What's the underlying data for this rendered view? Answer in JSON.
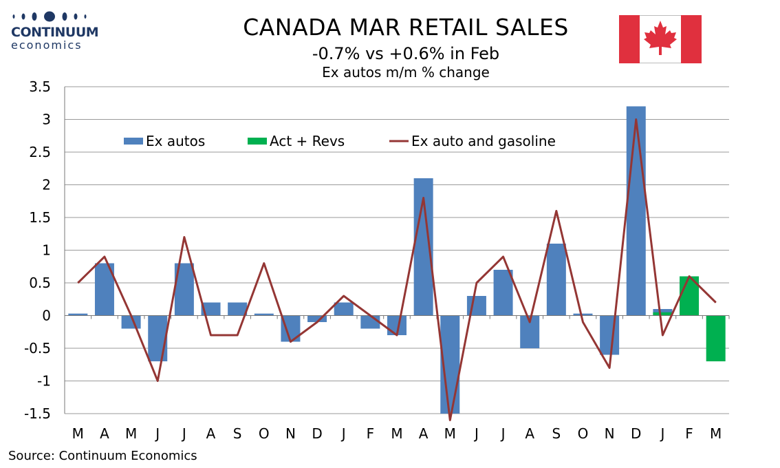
{
  "logo": {
    "name": "CONTINUUM",
    "sub": "economics"
  },
  "flag_icon": "canada-flag-icon",
  "titles": {
    "main": "CANADA MAR RETAIL SALES",
    "sub": "-0.7% vs +0.6% in Feb",
    "sub2": "Ex autos m/m % change"
  },
  "source": "Source: Continuum Economics",
  "colors": {
    "ex_autos": "#4f81bd",
    "act_revs": "#00b050",
    "line": "#943634",
    "flag_red": "#e0303e"
  },
  "chart_data": {
    "type": "bar",
    "title": "CANADA MAR RETAIL SALES",
    "categories": [
      "M",
      "A",
      "M",
      "J",
      "J",
      "A",
      "S",
      "O",
      "N",
      "D",
      "J",
      "F",
      "M",
      "A",
      "M",
      "J",
      "J",
      "A",
      "S",
      "O",
      "N",
      "D",
      "J",
      "F",
      "M"
    ],
    "ylim": [
      -1.5,
      3.5
    ],
    "yticks": [
      "3.5",
      "3",
      "2.5",
      "2",
      "1.5",
      "1",
      "0.5",
      "0",
      "-0.5",
      "-1",
      "-1.5"
    ],
    "ytick_values": [
      3.5,
      3,
      2.5,
      2,
      1.5,
      1,
      0.5,
      0,
      -0.5,
      -1,
      -1.5
    ],
    "grid": true,
    "legend_position": "top-left",
    "series": [
      {
        "name": "Ex autos",
        "type": "bar",
        "values": [
          0.03,
          0.8,
          -0.2,
          -0.7,
          0.8,
          0.2,
          0.2,
          0.03,
          -0.4,
          -0.1,
          0.2,
          -0.2,
          -0.3,
          2.1,
          -1.6,
          0.3,
          0.7,
          -0.5,
          1.1,
          0.03,
          -0.6,
          3.2,
          0.1,
          0.5,
          null
        ]
      },
      {
        "name": "Act + Revs",
        "type": "bar",
        "values": [
          null,
          null,
          null,
          null,
          null,
          null,
          null,
          null,
          null,
          null,
          null,
          null,
          null,
          null,
          null,
          null,
          null,
          null,
          null,
          null,
          null,
          null,
          0.05,
          0.6,
          -0.7
        ]
      },
      {
        "name": "Ex auto and gasoline",
        "type": "line",
        "values": [
          0.5,
          0.9,
          0.0,
          -1.0,
          1.2,
          -0.3,
          -0.3,
          0.8,
          -0.4,
          -0.1,
          0.3,
          0.0,
          -0.3,
          1.8,
          -1.6,
          0.5,
          0.9,
          -0.1,
          1.6,
          -0.1,
          -0.8,
          3.0,
          -0.3,
          0.6,
          0.2
        ]
      }
    ]
  }
}
